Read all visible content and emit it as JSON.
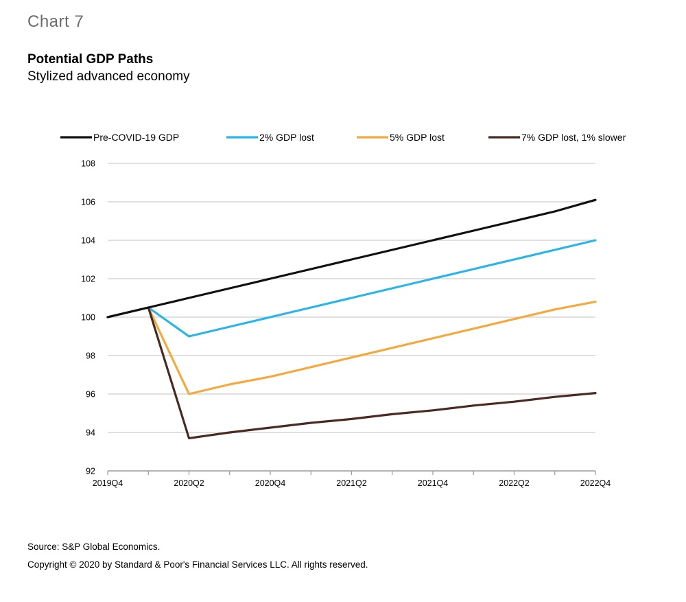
{
  "header": {
    "chart_number": "Chart 7",
    "title": "Potential GDP Paths",
    "subtitle": "Stylized advanced economy"
  },
  "footer": {
    "source": "Source: S&P Global Economics.",
    "copyright": "Copyright © 2020 by Standard & Poor's Financial Services LLC. All rights reserved."
  },
  "chart_data": {
    "type": "line",
    "title": "Potential GDP Paths",
    "subtitle": "Stylized advanced economy",
    "xlabel": "",
    "ylabel": "",
    "x": [
      "2019Q4",
      "2020Q1",
      "2020Q2",
      "2020Q3",
      "2020Q4",
      "2021Q1",
      "2021Q2",
      "2021Q3",
      "2021Q4",
      "2022Q1",
      "2022Q2",
      "2022Q3",
      "2022Q4"
    ],
    "x_tick_labels": [
      "2019Q4",
      "2020Q2",
      "2020Q4",
      "2021Q2",
      "2021Q4",
      "2022Q2",
      "2022Q4"
    ],
    "ylim": [
      92,
      108
    ],
    "y_ticks": [
      92,
      94,
      96,
      98,
      100,
      102,
      104,
      106,
      108
    ],
    "grid": "horizontal",
    "legend_position": "top",
    "series": [
      {
        "name": "Pre-COVID-19 GDP",
        "color": "#111111",
        "values": [
          100.0,
          100.5,
          101.0,
          101.5,
          102.0,
          102.5,
          103.0,
          103.5,
          104.0,
          104.5,
          105.0,
          105.5,
          106.1
        ]
      },
      {
        "name": "2% GDP lost",
        "color": "#29b5e8",
        "values": [
          100.0,
          100.5,
          99.0,
          99.5,
          100.0,
          100.5,
          101.0,
          101.5,
          102.0,
          102.5,
          103.0,
          103.5,
          104.0
        ]
      },
      {
        "name": "5% GDP lost",
        "color": "#f4a93e",
        "values": [
          100.0,
          100.5,
          96.0,
          96.5,
          96.9,
          97.4,
          97.9,
          98.4,
          98.9,
          99.4,
          99.9,
          100.4,
          100.8
        ]
      },
      {
        "name": "7% GDP lost, 1% slower",
        "color": "#4a2a22",
        "values": [
          100.0,
          100.5,
          93.7,
          94.0,
          94.25,
          94.5,
          94.7,
          94.95,
          95.15,
          95.4,
          95.6,
          95.85,
          96.05
        ]
      }
    ]
  }
}
